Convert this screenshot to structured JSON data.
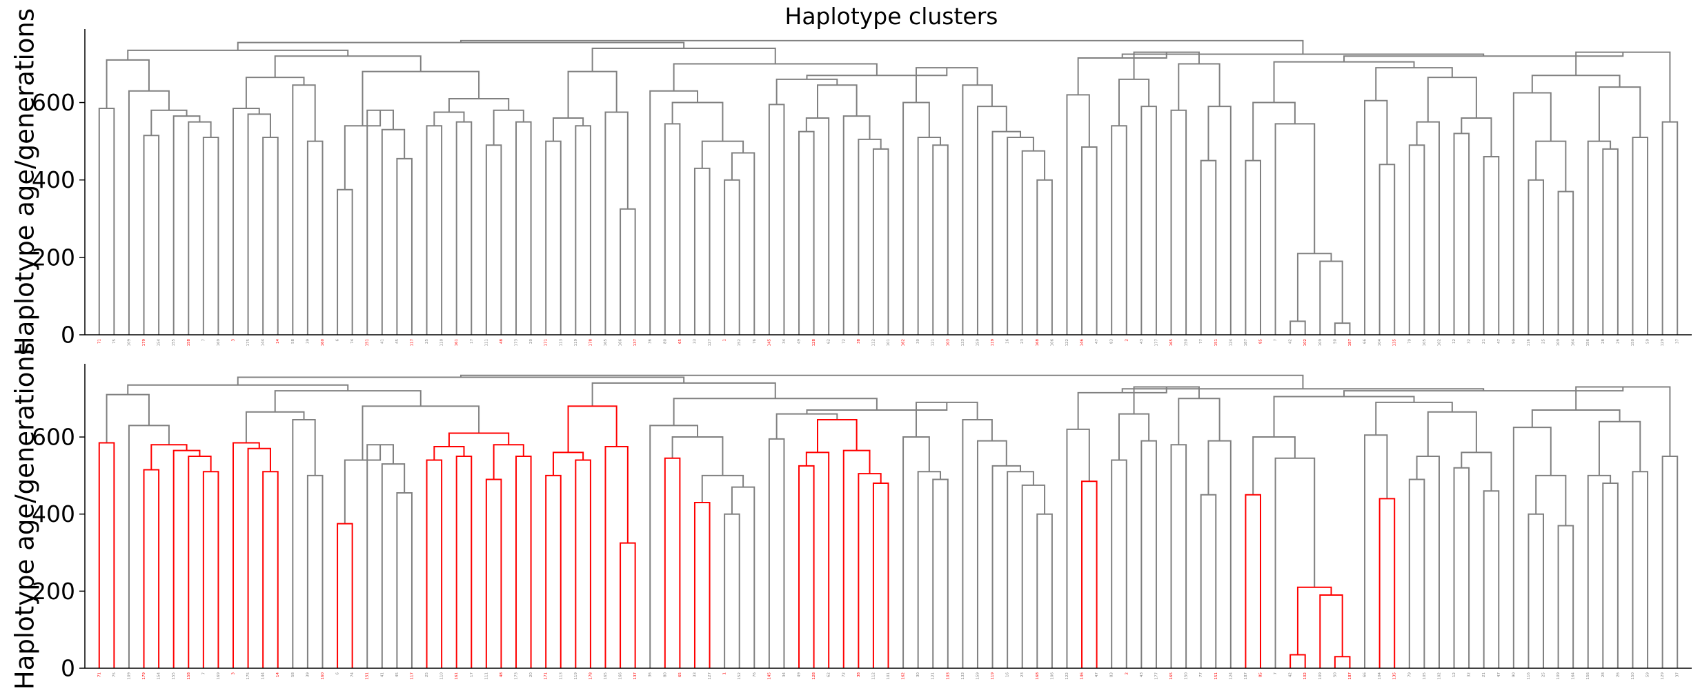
{
  "chart_data": {
    "type": "dendrogram",
    "title": "Haplotype clusters",
    "colors": {
      "default": "#808080",
      "highlight": "#ff0000",
      "axis": "#000000"
    },
    "y_ticks": [
      0,
      200,
      400,
      600
    ],
    "panels": [
      {
        "ylabel": "Haplotype age/generations",
        "ylim": [
          0,
          790
        ],
        "highlighted_branches": "none",
        "leaf_labels": [
          "71",
          "75",
          "109",
          "179",
          "154",
          "155",
          "158",
          "7",
          "169",
          "3",
          "175",
          "144",
          "14",
          "58",
          "39",
          "160",
          "6",
          "74",
          "151",
          "41",
          "45",
          "117",
          "25",
          "110",
          "161",
          "17",
          "111",
          "48",
          "173",
          "20",
          "171",
          "113",
          "119",
          "178",
          "165",
          "166",
          "137",
          "36",
          "80",
          "65",
          "33",
          "127",
          "1",
          "152",
          "76",
          "145",
          "34",
          "49",
          "128",
          "62",
          "72",
          "38",
          "112",
          "101",
          "162",
          "30",
          "121",
          "103",
          "133",
          "159",
          "119",
          "16",
          "23",
          "168",
          "106",
          "122",
          "146",
          "47",
          "83",
          "2",
          "43",
          "177",
          "165",
          "150",
          "77",
          "151",
          "124",
          "187",
          "85",
          "7",
          "42",
          "102",
          "109",
          "50",
          "187",
          "66",
          "104",
          "135",
          "79",
          "105",
          "102",
          "12",
          "32",
          "21",
          "47",
          "90",
          "116",
          "25",
          "109",
          "164",
          "156",
          "28",
          "26",
          "150",
          "59",
          "129",
          "37",
          "22",
          "12",
          "47",
          "82",
          "5",
          "91",
          "135",
          "115",
          "53",
          "58",
          "85",
          "99",
          "123",
          "24",
          "4",
          "123",
          "40",
          "120",
          "100",
          "15",
          "54",
          "33",
          "52",
          "92",
          "99",
          "60",
          "29",
          "155",
          "181",
          "170",
          "57",
          "173",
          "123",
          "130",
          "148",
          "41",
          "45",
          "80",
          "112",
          "13",
          "96",
          "30",
          "44",
          "4",
          "46",
          "118",
          "13",
          "162",
          "126",
          "174",
          "185",
          "105",
          "146",
          "20",
          "161",
          "104",
          "108",
          "87",
          "158",
          "56",
          "111",
          "2",
          "134",
          "123",
          "64",
          "134",
          "93",
          "79",
          "192",
          "185",
          "163",
          "27",
          "127",
          "197",
          "143",
          "108",
          "77",
          "71",
          "74",
          "147",
          "83",
          "95",
          "183",
          "166"
        ]
      },
      {
        "ylabel": "Haplotype age/generations",
        "ylim": [
          0,
          790
        ],
        "highlighted_branches": "red clusters",
        "leaf_labels": [
          "71",
          "75",
          "109",
          "179",
          "154",
          "155",
          "158",
          "7",
          "169",
          "3",
          "175",
          "144",
          "14",
          "58",
          "39",
          "160",
          "6",
          "74",
          "151",
          "41",
          "45",
          "117",
          "25",
          "110",
          "161",
          "17",
          "111",
          "48",
          "173",
          "20",
          "171",
          "113",
          "119",
          "178",
          "165",
          "166",
          "137",
          "36",
          "80",
          "65",
          "33",
          "127",
          "1",
          "152",
          "76",
          "145",
          "34",
          "49",
          "128",
          "62",
          "72",
          "38",
          "112",
          "101",
          "162",
          "30",
          "121",
          "103",
          "133",
          "159",
          "119",
          "16",
          "23",
          "168",
          "106",
          "122",
          "146",
          "47",
          "83",
          "2",
          "43",
          "177",
          "165",
          "150",
          "77",
          "151",
          "124",
          "187",
          "85",
          "7",
          "42",
          "102",
          "109",
          "50",
          "187",
          "66",
          "104",
          "135",
          "79",
          "105",
          "102",
          "12",
          "32",
          "21",
          "47",
          "90",
          "116",
          "25",
          "109",
          "164",
          "156",
          "28",
          "26",
          "150",
          "59",
          "129",
          "37",
          "22",
          "12",
          "47",
          "82",
          "5",
          "91",
          "135",
          "115",
          "53",
          "58",
          "85",
          "99",
          "123",
          "24",
          "4",
          "123",
          "40",
          "120",
          "100",
          "15",
          "54",
          "33",
          "52",
          "92",
          "99",
          "60",
          "29",
          "155",
          "181",
          "170",
          "57",
          "173",
          "123",
          "130",
          "148",
          "41",
          "45",
          "80",
          "112",
          "13",
          "96",
          "30",
          "44",
          "4",
          "46",
          "118",
          "13",
          "162",
          "126",
          "174",
          "185",
          "105",
          "146",
          "20",
          "161",
          "104",
          "108",
          "87",
          "158",
          "56",
          "111",
          "2",
          "134",
          "123",
          "64",
          "134",
          "93",
          "79",
          "192",
          "185",
          "163",
          "27",
          "127",
          "197",
          "143",
          "108",
          "77",
          "71",
          "74",
          "147",
          "83",
          "95",
          "183",
          "166"
        ]
      }
    ]
  }
}
